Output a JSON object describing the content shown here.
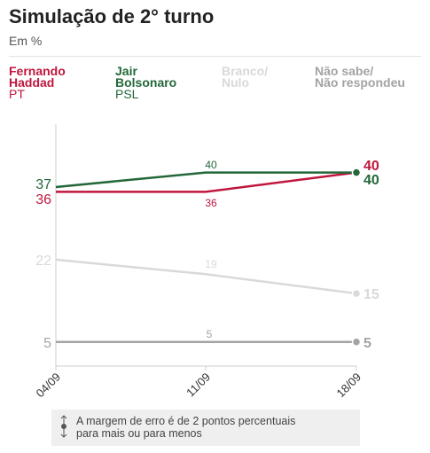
{
  "header": {
    "title": "Simulação de 2° turno",
    "subtitle": "Em %"
  },
  "legend": [
    {
      "name_line1": "Fernando",
      "name_line2": "Haddad",
      "party": "PT",
      "color": "#c0163d"
    },
    {
      "name_line1": "Jair",
      "name_line2": "Bolsonaro",
      "party": "PSL",
      "color": "#23673a"
    },
    {
      "name_line1": "Branco/",
      "name_line2": "Nulo",
      "party": "",
      "color": "#d9d9d9"
    },
    {
      "name_line1": "Não sabe/",
      "name_line2": "Não respondeu",
      "party": "",
      "color": "#a3a3a3"
    }
  ],
  "note": {
    "line1": "A margem de erro é de 2 pontos percentuais",
    "line2": "para mais ou para menos"
  },
  "chart_data": {
    "type": "line",
    "title": "Simulação de 2° turno",
    "subtitle": "Em %",
    "x": [
      "04/09",
      "11/09",
      "18/09"
    ],
    "ylim": [
      0,
      50
    ],
    "grid": false,
    "series": [
      {
        "name": "Fernando Haddad",
        "values": [
          36,
          36,
          40
        ],
        "color": "#c0163d"
      },
      {
        "name": "Jair Bolsonaro",
        "values": [
          37,
          40,
          40
        ],
        "color": "#23673a"
      },
      {
        "name": "Branco/Nulo",
        "values": [
          22,
          19,
          15
        ],
        "color": "#d9d9d9"
      },
      {
        "name": "Não sabe/Não respondeu",
        "values": [
          5,
          5,
          5
        ],
        "color": "#a3a3a3"
      }
    ]
  }
}
